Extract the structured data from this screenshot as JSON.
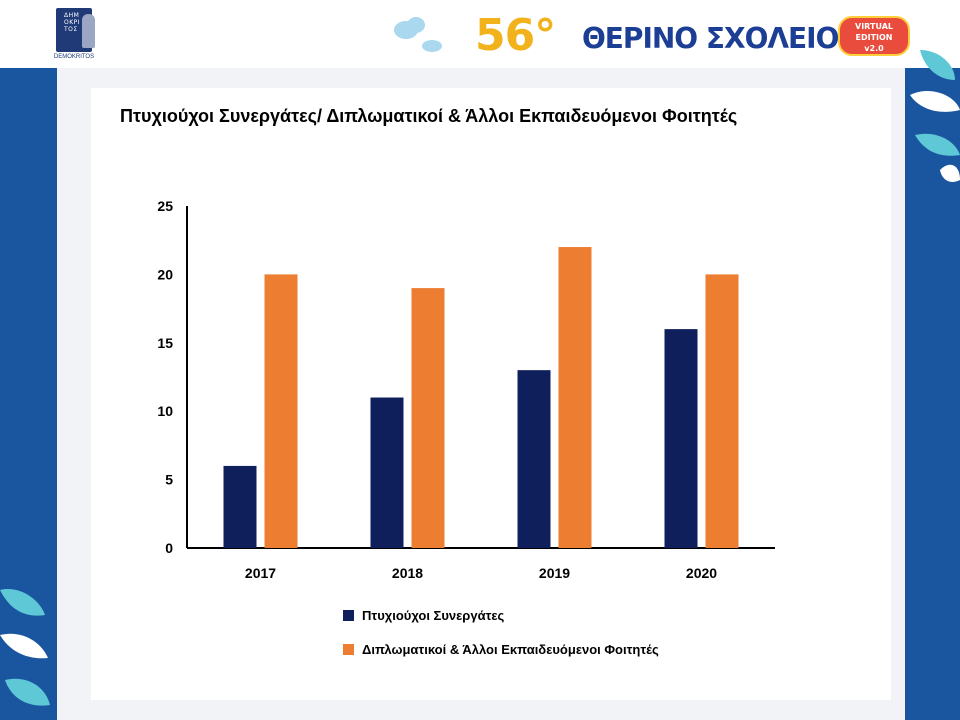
{
  "header": {
    "logo_caption": "DEMOKRITOS",
    "logo_letters": "ΔΗΜΟΚΡΙΤΟΣ",
    "edition_number": "56°",
    "school_title": "ΘΕΡΙΝΟ ΣΧΟΛΕΙΟ",
    "badge_line1": "VIRTUAL",
    "badge_line2": "EDITION",
    "badge_line3": "v2.0"
  },
  "colors": {
    "background": "#1a56a0",
    "series_1": "#0f1f5c",
    "series_2": "#ed7d31",
    "decor_leaf": "#5ec8d6"
  },
  "chart_data": {
    "type": "bar",
    "title": "Πτυχιούχοι Συνεργάτες/ Διπλωματικοί &  Άλλοι Εκπαιδευόμενοι Φοιτητές",
    "categories": [
      "2017",
      "2018",
      "2019",
      "2020"
    ],
    "series": [
      {
        "name": "Πτυχιούχοι Συνεργάτες",
        "values": [
          6,
          11,
          13,
          16
        ],
        "color": "#0f1f5c"
      },
      {
        "name": "Διπλωματικοί &  Άλλοι Εκπαιδευόμενοι Φοιτητές",
        "values": [
          20,
          19,
          22,
          20
        ],
        "color": "#ed7d31"
      }
    ],
    "yticks": [
      0,
      5,
      10,
      15,
      20,
      25
    ],
    "ylim": [
      0,
      25
    ],
    "xlabel": "",
    "ylabel": "",
    "grid": false,
    "legend": "bottom"
  }
}
